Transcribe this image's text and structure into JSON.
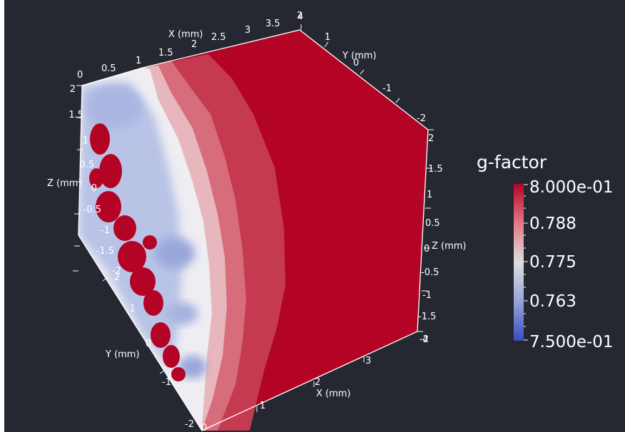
{
  "legend": {
    "title": "g-factor",
    "labels": [
      "8.000e-01",
      "0.788",
      "0.775",
      "0.763",
      "7.500e-01"
    ],
    "colors": {
      "high": "#b40426",
      "mid": "#dddddd",
      "low": "#3b4cc0"
    }
  },
  "axes": {
    "top_x_title": "X (mm)",
    "top_x_ticks": [
      "0",
      "0.5",
      "1",
      "1.5",
      "2",
      "2.5",
      "3",
      "3.5",
      "4"
    ],
    "top_y_title": "Y (mm)",
    "top_y_ticks": [
      "2",
      "1",
      "0",
      "-1",
      "-2"
    ],
    "left_z_title": "Z (mm)",
    "left_z_ticks": [
      "2",
      "1.5",
      "1",
      "0.5",
      "0",
      "-0.5",
      "-1",
      "-1.5",
      "-2"
    ],
    "left_y_title": "Y (mm)",
    "left_y_ticks": [
      "2",
      "1",
      "0",
      "-1",
      "-2"
    ],
    "right_z_title": "Z (mm)",
    "right_z_ticks": [
      "2",
      "1.5",
      "1",
      "0.5",
      "0",
      "-0.5",
      "-1",
      "-1.5",
      "-2"
    ],
    "bottom_x_title": "X (mm)",
    "bottom_x_ticks": [
      "0",
      "1",
      "2",
      "3",
      "4"
    ]
  },
  "background": "#262831"
}
